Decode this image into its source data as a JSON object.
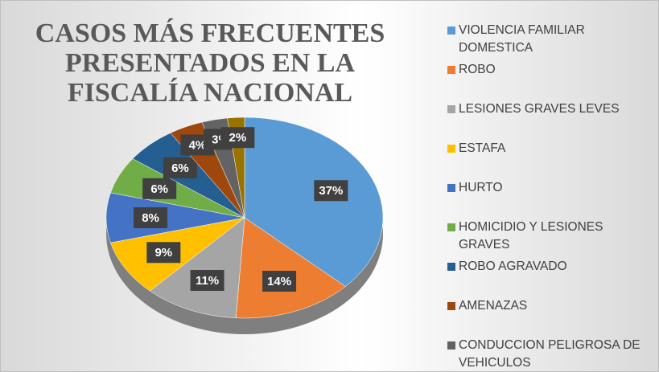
{
  "chart_data": {
    "type": "pie3d",
    "title": "CASOS MÁS FRECUENTES PRESENTADOS EN LA FISCALÍA NACIONAL",
    "categories": [
      "VIOLENCIA FAMILIAR DOMESTICA",
      "ROBO",
      "LESIONES GRAVES LEVES",
      "ESTAFA",
      "HURTO",
      "HOMICIDIO Y LESIONES GRAVES",
      "ROBO AGRAVADO",
      "AMENAZAS",
      "CONDUCCION PELIGROSA DE VEHICULOS",
      null
    ],
    "values": [
      37,
      14,
      11,
      9,
      8,
      6,
      6,
      4,
      3,
      2
    ],
    "value_labels": [
      "37%",
      "14%",
      "11%",
      "9%",
      "8%",
      "6%",
      "6%",
      "4%",
      "3%",
      "2%"
    ],
    "colors": [
      "#5b9bd5",
      "#ed7d31",
      "#a5a5a5",
      "#ffc000",
      "#4472c4",
      "#70ad47",
      "#255e91",
      "#9e480e",
      "#636363",
      "#997300"
    ],
    "legend": "right"
  }
}
